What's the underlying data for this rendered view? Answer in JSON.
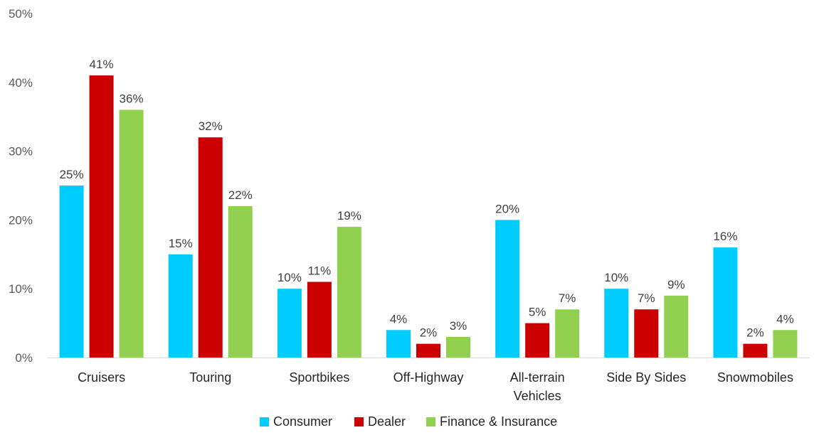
{
  "chart_data": {
    "type": "bar",
    "categories": [
      "Cruisers",
      "Touring",
      "Sportbikes",
      "Off-Highway",
      "All-terrain Vehicles",
      "Side By Sides",
      "Snowmobiles"
    ],
    "category_lines": [
      [
        "Cruisers"
      ],
      [
        "Touring"
      ],
      [
        "Sportbikes"
      ],
      [
        "Off-Highway"
      ],
      [
        "All-terrain",
        "Vehicles"
      ],
      [
        "Side By Sides"
      ],
      [
        "Snowmobiles"
      ]
    ],
    "series": [
      {
        "name": "Consumer",
        "color": "#00CCFF",
        "values": [
          25,
          15,
          10,
          4,
          20,
          10,
          16
        ],
        "labels": [
          "25%",
          "15%",
          "10%",
          "4%",
          "20%",
          "10%",
          "16%"
        ]
      },
      {
        "name": "Dealer",
        "color": "#CC0000",
        "values": [
          41,
          32,
          11,
          2,
          5,
          7,
          2
        ],
        "labels": [
          "41%",
          "32%",
          "11%",
          "2%",
          "5%",
          "7%",
          "2%"
        ]
      },
      {
        "name": "Finance & Insurance",
        "color": "#92D050",
        "values": [
          36,
          22,
          19,
          3,
          7,
          9,
          4
        ],
        "labels": [
          "36%",
          "22%",
          "19%",
          "3%",
          "7%",
          "9%",
          "4%"
        ]
      }
    ],
    "ylim": [
      0,
      50
    ],
    "yticks": [
      0,
      10,
      20,
      30,
      40,
      50
    ],
    "ytick_labels": [
      "0%",
      "10%",
      "20%",
      "30%",
      "40%",
      "50%"
    ],
    "grid": false,
    "legend_position": "bottom",
    "axis_color": "#D9D9D9"
  }
}
